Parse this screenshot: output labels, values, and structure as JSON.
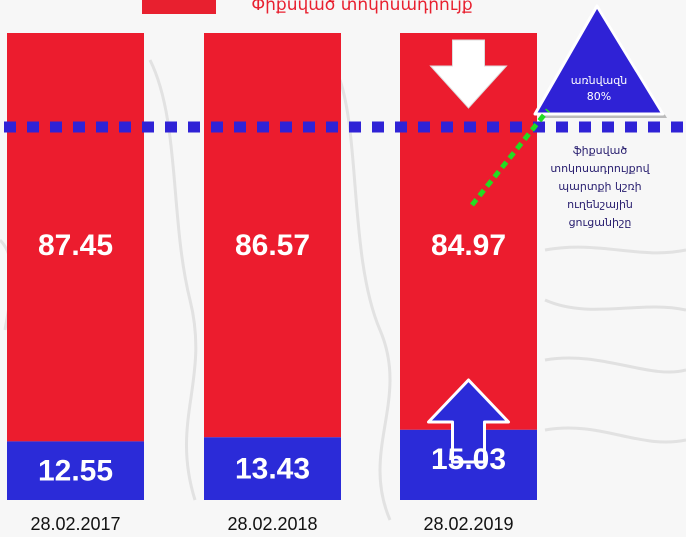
{
  "legend": {
    "label": "Փիքսված տոկոսադրույք",
    "color": "#e8202f"
  },
  "threshold": {
    "label_line1": "առնվազն",
    "label_line2": "80%",
    "value": 80,
    "color": "#2f22d6"
  },
  "note": {
    "lines": [
      "ֆիքսված",
      "տոկոսադրույքով",
      "պարտքի կշռի",
      "ուղենշային",
      "ցուցանիշը"
    ],
    "connector_color": "#22dd22"
  },
  "colors": {
    "fixed": "#ec1c2e",
    "floating": "#2b2bd8",
    "arrow_down": "#ffffff",
    "arrow_up": "#2b2bd8"
  },
  "icons": {
    "down": "arrow-down-icon",
    "up": "arrow-up-icon"
  },
  "chart_data": {
    "type": "bar",
    "stacked": true,
    "categories": [
      "28.02.2017",
      "28.02.2018",
      "28.02.2019"
    ],
    "series": [
      {
        "name": "Փիքսված տոկոսադրույք",
        "values": [
          87.45,
          86.57,
          84.97
        ]
      },
      {
        "values": [
          12.55,
          13.43,
          15.03
        ]
      }
    ],
    "labels_fixed": [
      "87.45",
      "86.57",
      "84.97"
    ],
    "labels_floating": [
      "12.55",
      "13.43",
      "15.03"
    ],
    "ylim": [
      0,
      100
    ],
    "reference_line": 80,
    "grid": false
  }
}
